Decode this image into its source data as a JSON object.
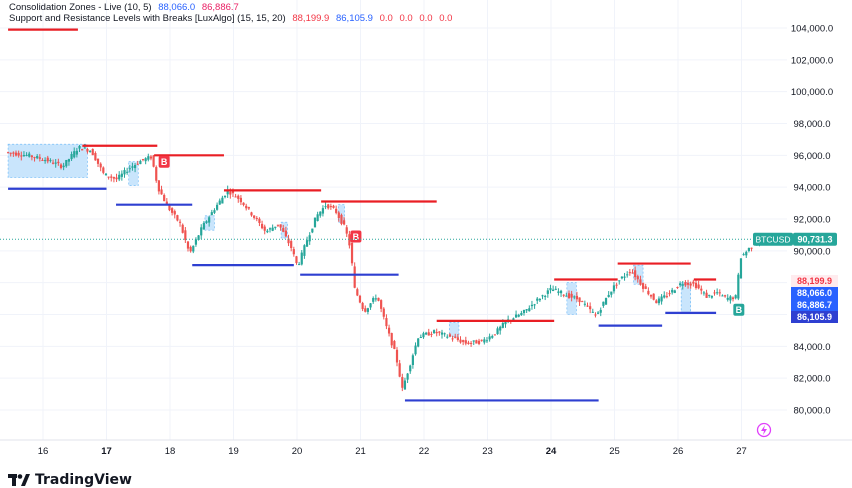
{
  "legend": {
    "consolidation_name": "Consolidation Zones - Live (10, 5)",
    "consolidation_values": [
      "88,066.0",
      "86,886.7"
    ],
    "snr_name": "Support and Resistance Levels with Breaks [LuxAlgo] (15, 15, 20)",
    "snr_values": [
      "88,199.9",
      "86,105.9"
    ],
    "snr_zero_values": [
      "0.0",
      "0.0",
      "0.0",
      "0.0"
    ]
  },
  "watermark": {
    "text": "TradingView",
    "logo_icon": "tradingview-logo-icon"
  },
  "colors": {
    "up": "#26a69a",
    "down": "#ef5350",
    "resistance": "#e91e24",
    "support": "#2e3fd1",
    "zone_fill": "#bbdefb",
    "zone_border": "#64b5f6",
    "price_line": "#26a69a",
    "grid": "#f0f3fa"
  },
  "chart_data": {
    "type": "candlestick",
    "symbol": "BTCUSD",
    "y_axis": {
      "min": 79000,
      "max": 105000,
      "ticks": [
        80000,
        82000,
        84000,
        86000,
        88000,
        90000,
        92000,
        94000,
        96000,
        98000,
        100000,
        102000,
        104000
      ],
      "tick_labels": [
        "80,000.0",
        "82,000.0",
        "84,000.0",
        "86,000.0",
        "88,000.0",
        "90,000.0",
        "92,000.0",
        "94,000.0",
        "96,000.0",
        "98,000.0",
        "100,000.0",
        "102,000.0",
        "104,000.0"
      ]
    },
    "x_axis": {
      "start_day": 15.45,
      "end_day": 27.6,
      "ticks": [
        16,
        17,
        18,
        19,
        20,
        21,
        22,
        23,
        24,
        25,
        26,
        27
      ],
      "tick_labels": [
        "16",
        "17",
        "18",
        "19",
        "20",
        "21",
        "22",
        "23",
        "24",
        "25",
        "26",
        "27"
      ],
      "bold_ticks": [
        "17",
        "24"
      ]
    },
    "price_path": [
      [
        15.45,
        96200
      ],
      [
        15.8,
        96000
      ],
      [
        16.1,
        95700
      ],
      [
        16.35,
        95300
      ],
      [
        16.6,
        96500
      ],
      [
        16.8,
        96300
      ],
      [
        17.0,
        94800
      ],
      [
        17.2,
        94500
      ],
      [
        17.4,
        95200
      ],
      [
        17.6,
        95700
      ],
      [
        17.75,
        95900
      ],
      [
        17.85,
        94000
      ],
      [
        18.0,
        92800
      ],
      [
        18.2,
        91700
      ],
      [
        18.35,
        89800
      ],
      [
        18.55,
        91500
      ],
      [
        18.75,
        92700
      ],
      [
        18.95,
        93800
      ],
      [
        19.15,
        93200
      ],
      [
        19.35,
        92200
      ],
      [
        19.55,
        91200
      ],
      [
        19.75,
        91700
      ],
      [
        19.95,
        90200
      ],
      [
        20.05,
        89000
      ],
      [
        20.2,
        90700
      ],
      [
        20.35,
        92200
      ],
      [
        20.5,
        92900
      ],
      [
        20.65,
        92500
      ],
      [
        20.8,
        91400
      ],
      [
        20.88,
        90200
      ],
      [
        20.95,
        87600
      ],
      [
        21.1,
        86200
      ],
      [
        21.3,
        87200
      ],
      [
        21.45,
        85200
      ],
      [
        21.6,
        83400
      ],
      [
        21.7,
        81300
      ],
      [
        21.8,
        82600
      ],
      [
        21.95,
        84600
      ],
      [
        22.2,
        84900
      ],
      [
        22.45,
        84600
      ],
      [
        22.7,
        84200
      ],
      [
        22.95,
        84300
      ],
      [
        23.15,
        84800
      ],
      [
        23.35,
        85600
      ],
      [
        23.6,
        86100
      ],
      [
        23.85,
        87000
      ],
      [
        24.05,
        87600
      ],
      [
        24.3,
        87200
      ],
      [
        24.5,
        86900
      ],
      [
        24.75,
        85900
      ],
      [
        24.95,
        87300
      ],
      [
        25.1,
        88100
      ],
      [
        25.3,
        88800
      ],
      [
        25.5,
        87700
      ],
      [
        25.7,
        86800
      ],
      [
        25.9,
        87300
      ],
      [
        26.1,
        88000
      ],
      [
        26.3,
        87900
      ],
      [
        26.5,
        87100
      ],
      [
        26.65,
        87400
      ],
      [
        26.8,
        87000
      ],
      [
        26.95,
        87100
      ],
      [
        27.03,
        89600
      ],
      [
        27.15,
        90100
      ],
      [
        27.27,
        90600
      ],
      [
        27.35,
        90731.3
      ]
    ],
    "resistance_levels": [
      {
        "x_start": 15.45,
        "x_end": 16.55,
        "y": 103900
      },
      {
        "x_start": 16.62,
        "x_end": 17.8,
        "y": 96600
      },
      {
        "x_start": 17.75,
        "x_end": 18.85,
        "y": 96000
      },
      {
        "x_start": 18.85,
        "x_end": 20.38,
        "y": 93800
      },
      {
        "x_start": 20.38,
        "x_end": 22.2,
        "y": 93100
      },
      {
        "x_start": 22.2,
        "x_end": 24.05,
        "y": 85600
      },
      {
        "x_start": 24.05,
        "x_end": 25.05,
        "y": 88200
      },
      {
        "x_start": 25.05,
        "x_end": 26.2,
        "y": 89200
      },
      {
        "x_start": 26.25,
        "x_end": 26.6,
        "y": 88200
      }
    ],
    "support_levels": [
      {
        "x_start": 15.45,
        "x_end": 17.0,
        "y": 93900
      },
      {
        "x_start": 17.15,
        "x_end": 18.35,
        "y": 92900
      },
      {
        "x_start": 18.35,
        "x_end": 19.95,
        "y": 89100
      },
      {
        "x_start": 20.05,
        "x_end": 21.6,
        "y": 88500
      },
      {
        "x_start": 21.7,
        "x_end": 24.75,
        "y": 80600
      },
      {
        "x_start": 24.75,
        "x_end": 25.75,
        "y": 85300
      },
      {
        "x_start": 25.8,
        "x_end": 26.6,
        "y": 86100
      }
    ],
    "consolidation_zones": [
      {
        "x_start": 15.45,
        "x_end": 16.7,
        "y_low": 94600,
        "y_high": 96700
      },
      {
        "x_start": 17.35,
        "x_end": 17.5,
        "y_low": 94100,
        "y_high": 95600
      },
      {
        "x_start": 18.55,
        "x_end": 18.7,
        "y_low": 91300,
        "y_high": 92200
      },
      {
        "x_start": 19.75,
        "x_end": 19.85,
        "y_low": 90800,
        "y_high": 91800
      },
      {
        "x_start": 20.65,
        "x_end": 20.75,
        "y_low": 91800,
        "y_high": 92900
      },
      {
        "x_start": 22.4,
        "x_end": 22.55,
        "y_low": 84600,
        "y_high": 85500
      },
      {
        "x_start": 24.25,
        "x_end": 24.4,
        "y_low": 86000,
        "y_high": 88000
      },
      {
        "x_start": 25.3,
        "x_end": 25.45,
        "y_low": 87900,
        "y_high": 89100
      },
      {
        "x_start": 26.05,
        "x_end": 26.2,
        "y_low": 86100,
        "y_high": 88000
      }
    ],
    "break_labels": [
      {
        "x": 17.9,
        "y": 95600,
        "text": "B",
        "color": "#f23645"
      },
      {
        "x": 20.92,
        "y": 90900,
        "text": "B",
        "color": "#f23645"
      },
      {
        "x": 26.95,
        "y": 86300,
        "text": "B",
        "color": "#26a69a"
      }
    ],
    "current_price": {
      "label": "BTCUSD",
      "value": "90,731.3",
      "y": 90731.3
    },
    "price_badges": [
      {
        "value": "88,199.9",
        "y": 88199.9,
        "bg": "#ffebee",
        "fg": "#f23645"
      },
      {
        "value": "88,066.0",
        "y": 88066,
        "bg": "#2962ff",
        "fg": "#ffffff"
      },
      {
        "value": "86,886.7",
        "y": 86886.7,
        "bg": "#2962ff",
        "fg": "#ffffff"
      },
      {
        "value": "86,105.9",
        "y": 86105.9,
        "bg": "#2e3fd1",
        "fg": "#ffffff"
      }
    ]
  }
}
